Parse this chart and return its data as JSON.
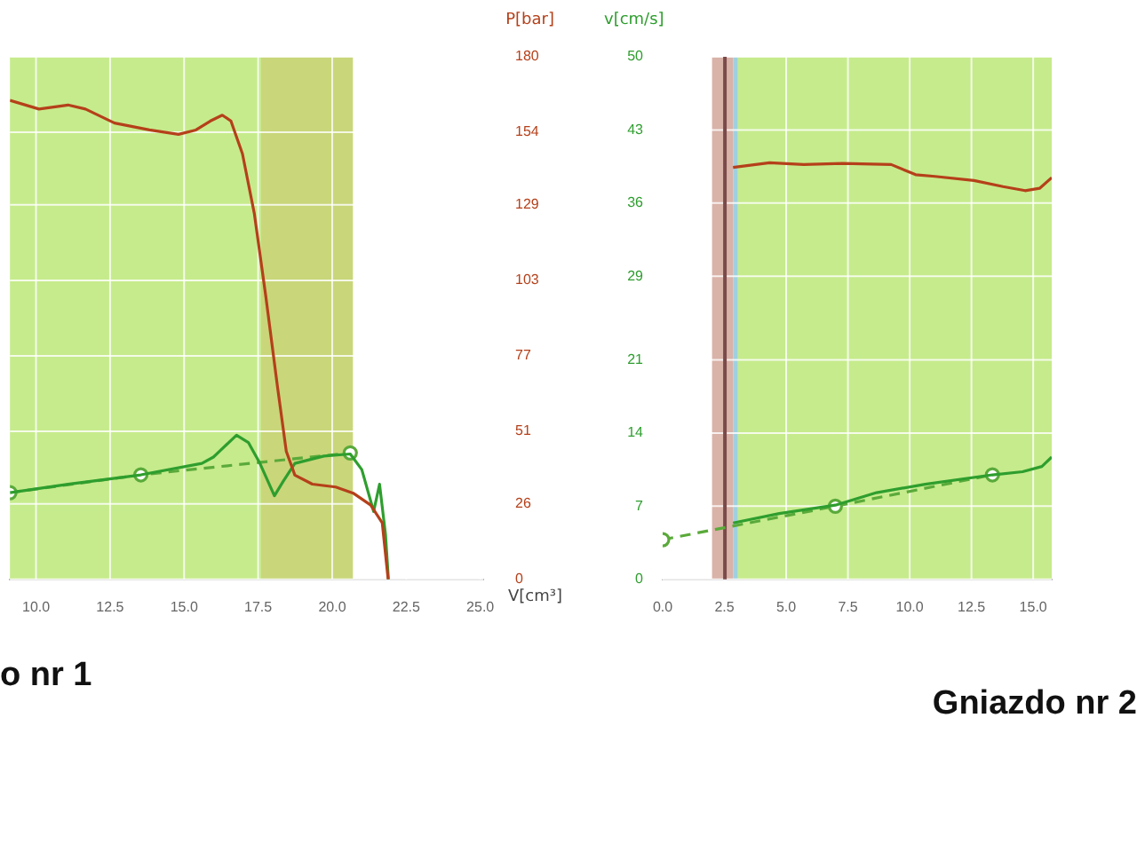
{
  "chart_data": [
    {
      "type": "line",
      "title": "o nr 1",
      "xlabel": "V[cm³]",
      "y2label": "P[bar]",
      "xlim": [
        9.12,
        25.1
      ],
      "xticks": [
        {
          "value": 10,
          "label": "10.0"
        },
        {
          "value": 12.5,
          "label": "12.5"
        },
        {
          "value": 15,
          "label": "15.0"
        },
        {
          "value": 17.5,
          "label": "17.5"
        },
        {
          "value": 20,
          "label": "20.0"
        },
        {
          "value": 22.5,
          "label": "22.5"
        },
        {
          "value": 25,
          "label": "25.0"
        }
      ],
      "ylim": [
        0,
        50
      ],
      "y2lim": [
        0,
        180
      ],
      "y2ticks": [
        0,
        26,
        51,
        77,
        103,
        129,
        154,
        180
      ],
      "grid": true,
      "legend": false,
      "bands": [
        {
          "axis": "x",
          "from": 9.12,
          "to": 17.6,
          "color": "#c6eb8c"
        },
        {
          "axis": "x",
          "from": 17.6,
          "to": 20.7,
          "color": "#c9d67a"
        }
      ],
      "series": [
        {
          "type": "line",
          "axis": "y2",
          "color": "#b5401a",
          "marker": "none",
          "line_style": "solid",
          "x": [
            9.12,
            10.1,
            11.08,
            11.67,
            12.65,
            13.83,
            14.81,
            15.4,
            15.89,
            16.29,
            16.58,
            16.97,
            17.37,
            17.76,
            18.15,
            18.45,
            18.74,
            19.33,
            20.12,
            20.71,
            21.3,
            21.69,
            21.89
          ],
          "values": [
            165,
            162,
            163.4,
            162,
            157.2,
            154.8,
            153.3,
            154.8,
            157.9,
            159.9,
            157.9,
            146.6,
            126.1,
            97.4,
            66.6,
            44.1,
            35.9,
            32.8,
            31.8,
            29.7,
            25.6,
            19.5,
            0
          ]
        },
        {
          "type": "line",
          "color": "#2e9e2e",
          "marker": "none",
          "line_style": "solid",
          "x": [
            9.12,
            11.08,
            13.54,
            15.6,
            15.99,
            16.77,
            17.17,
            17.56,
            18.05,
            18.35,
            18.74,
            19.72,
            20.61,
            21.0,
            21.4,
            21.6,
            21.8,
            21.9
          ],
          "values": [
            8.3,
            9.1,
            10.0,
            11.1,
            11.7,
            13.8,
            13.1,
            11.1,
            8.0,
            9.4,
            11.1,
            11.8,
            12.0,
            10.5,
            6.5,
            9.1,
            4.3,
            0
          ]
        },
        {
          "type": "line",
          "color": "#5aaa3a",
          "marker": "circle",
          "line_style": "dashed",
          "x": [
            9.12,
            13.54,
            20.61
          ],
          "values": [
            8.3,
            10.0,
            12.1
          ]
        }
      ]
    },
    {
      "type": "line",
      "title": "Gniazdo nr 2",
      "ylabel": "v[cm/s]",
      "xlim": [
        0,
        15.75
      ],
      "xticks": [
        {
          "value": 0,
          "label": "0.0"
        },
        {
          "value": 2.5,
          "label": "2.5"
        },
        {
          "value": 5,
          "label": "5.0"
        },
        {
          "value": 7.5,
          "label": "7.5"
        },
        {
          "value": 10,
          "label": "10.0"
        },
        {
          "value": 12.5,
          "label": "12.5"
        },
        {
          "value": 15,
          "label": "15.0"
        }
      ],
      "ylim": [
        0,
        50
      ],
      "yticks": [
        0,
        7,
        14,
        21,
        29,
        36,
        43,
        50
      ],
      "y2lim": [
        0,
        180
      ],
      "grid": true,
      "legend": false,
      "bands": [
        {
          "axis": "x",
          "from": 2.0,
          "to": 2.85,
          "color": "#d9b2a8"
        },
        {
          "axis": "x",
          "from": 2.85,
          "to": 3.05,
          "color": "#9fd0e0"
        },
        {
          "axis": "x",
          "from": 3.05,
          "to": 15.75,
          "color": "#c6eb8c"
        }
      ],
      "ref_lines": [
        {
          "axis": "x",
          "value": 2.52,
          "color": "#7a4a4a"
        }
      ],
      "series": [
        {
          "type": "line",
          "axis": "y2",
          "color": "#b5401a",
          "marker": "none",
          "line_style": "solid",
          "x": [
            2.85,
            4.33,
            5.71,
            7.28,
            9.25,
            10.24,
            11.02,
            12.6,
            13.78,
            14.67,
            15.26,
            15.75
          ],
          "values": [
            141.9,
            143.5,
            142.9,
            143.3,
            142.9,
            139.4,
            138.8,
            137.4,
            135.3,
            133.9,
            134.7,
            138.4
          ]
        },
        {
          "type": "line",
          "color": "#2e9e2e",
          "marker": "none",
          "line_style": "solid",
          "x": [
            2.85,
            4.72,
            6.99,
            8.66,
            10.63,
            13.35,
            14.57,
            15.35,
            15.75
          ],
          "values": [
            5.4,
            6.3,
            7.1,
            8.3,
            9.1,
            10.0,
            10.3,
            10.8,
            11.7
          ]
        },
        {
          "type": "line",
          "color": "#5aaa3a",
          "marker": "circle",
          "line_style": "dashed",
          "x": [
            0,
            6.99,
            13.35
          ],
          "values": [
            3.8,
            7.0,
            10.0
          ]
        }
      ]
    }
  ]
}
